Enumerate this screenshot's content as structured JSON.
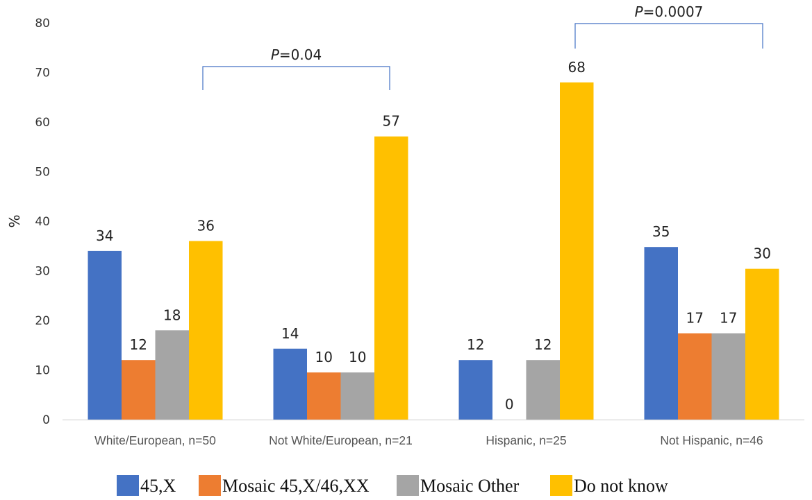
{
  "chart_data": {
    "type": "bar",
    "title": "",
    "xlabel": "",
    "ylabel": "%",
    "ylim": [
      0,
      80
    ],
    "yticks": [
      "0",
      "10",
      "20",
      "30",
      "40",
      "50",
      "60",
      "70",
      "80"
    ],
    "grid": false,
    "legend_placement": "bottom",
    "categories": [
      "White/European, n=50",
      "Not White/European, n=21",
      "Hispanic, n=25",
      "Not Hispanic, n=46"
    ],
    "series": [
      {
        "name": "45,X",
        "color": "#4472C4",
        "values": [
          34,
          14.3,
          12,
          34.8
        ],
        "labels": [
          "34",
          "14",
          "12",
          "35"
        ]
      },
      {
        "name": "Mosaic 45,X/46,XX",
        "color": "#ED7D31",
        "values": [
          12,
          9.5,
          0,
          17.4
        ],
        "labels": [
          "12",
          "10",
          "0",
          "17"
        ]
      },
      {
        "name": "Mosaic Other",
        "color": "#A5A5A5",
        "values": [
          18,
          9.5,
          12,
          17.4
        ],
        "labels": [
          "18",
          "10",
          "12",
          "17"
        ]
      },
      {
        "name": "Do not know",
        "color": "#FFC000",
        "values": [
          36,
          57.1,
          68,
          30.4
        ],
        "labels": [
          "36",
          "57",
          "68",
          "30"
        ]
      }
    ],
    "annotations": [
      {
        "prefix": "P",
        "text": "=0.04",
        "between_categories": [
          0,
          1
        ]
      },
      {
        "prefix": "P",
        "text": "=0.0007",
        "between_categories": [
          2,
          3
        ]
      }
    ],
    "bracket_color": "#4472C4"
  }
}
